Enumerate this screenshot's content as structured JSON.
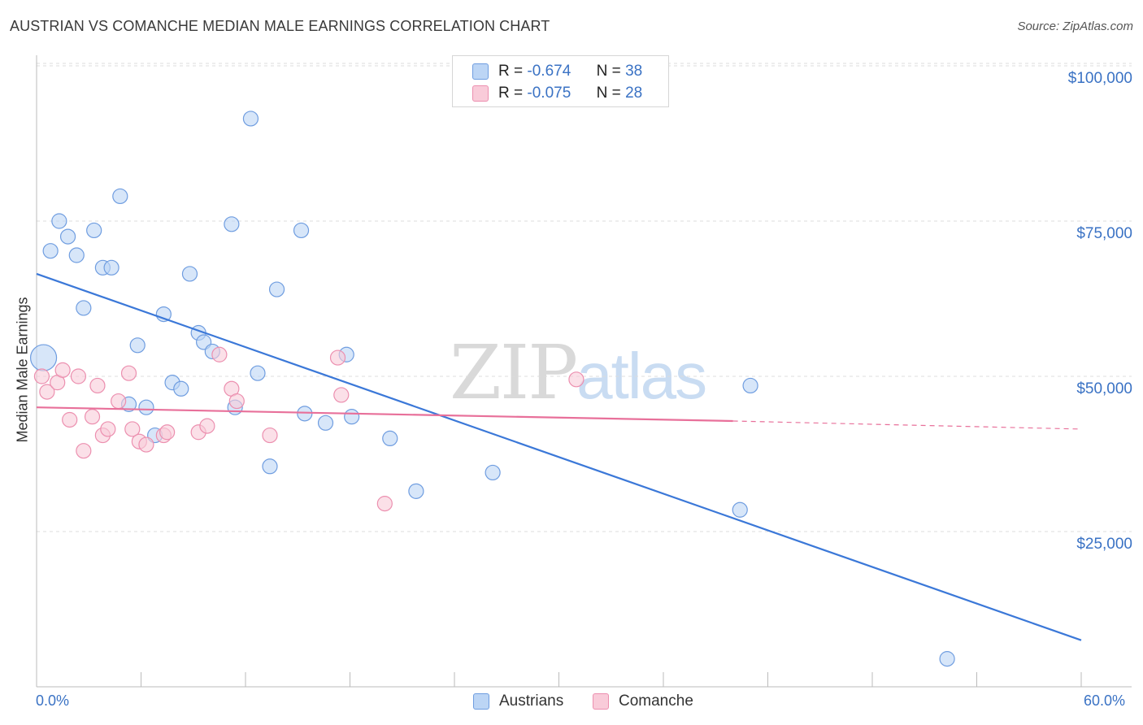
{
  "title": "AUSTRIAN VS COMANCHE MEDIAN MALE EARNINGS CORRELATION CHART",
  "source": "Source: ZipAtlas.com",
  "watermark": {
    "zip": "ZIP",
    "atlas": "atlas"
  },
  "legend_top": {
    "austrians": {
      "r_label": "R =",
      "r_value": "-0.674",
      "n_label": "N =",
      "n_value": "38"
    },
    "comanche": {
      "r_label": "R =",
      "r_value": "-0.075",
      "n_label": "N =",
      "n_value": "28"
    }
  },
  "legend_bottom": {
    "austrians": "Austrians",
    "comanche": "Comanche"
  },
  "chart_data": {
    "type": "scatter",
    "title": "AUSTRIAN VS COMANCHE MEDIAN MALE EARNINGS CORRELATION CHART",
    "xlabel": "",
    "ylabel": "Median Male Earnings",
    "xlim": [
      0,
      60
    ],
    "ylim": [
      0,
      105000
    ],
    "x_tick_labels": [
      "0.0%",
      "60.0%"
    ],
    "y_tick_labels": [
      "$25,000",
      "$50,000",
      "$75,000",
      "$100,000"
    ],
    "y_ticks": [
      25000,
      50000,
      75000,
      100000
    ],
    "colors": {
      "austrians": "#3b78d8",
      "comanche": "#e8709a",
      "austrians_fill": "#bcd5f5",
      "comanche_fill": "#f9cbd9",
      "axis_text": "#3a72c4"
    },
    "series": [
      {
        "name": "Austrians",
        "r": -0.674,
        "n": 38,
        "trend": {
          "x0": 0,
          "y0": 66500,
          "x1": 60,
          "y1": 7500
        },
        "points": [
          [
            0.4,
            53000,
            16
          ],
          [
            0.8,
            70200,
            9
          ],
          [
            1.3,
            75000,
            9
          ],
          [
            1.8,
            72500,
            9
          ],
          [
            2.3,
            69500,
            9
          ],
          [
            2.7,
            61000,
            9
          ],
          [
            3.3,
            73500,
            9
          ],
          [
            3.8,
            67500,
            9
          ],
          [
            4.3,
            67500,
            9
          ],
          [
            4.8,
            79000,
            9
          ],
          [
            5.3,
            45500,
            9
          ],
          [
            5.8,
            55000,
            9
          ],
          [
            6.3,
            45000,
            9
          ],
          [
            6.8,
            40500,
            9
          ],
          [
            7.3,
            60000,
            9
          ],
          [
            7.8,
            49000,
            9
          ],
          [
            8.3,
            48000,
            9
          ],
          [
            8.8,
            66500,
            9
          ],
          [
            9.3,
            57000,
            9
          ],
          [
            9.6,
            55500,
            9
          ],
          [
            10.1,
            54000,
            9
          ],
          [
            11.2,
            74500,
            9
          ],
          [
            11.4,
            45000,
            9
          ],
          [
            12.3,
            91500,
            9
          ],
          [
            12.7,
            50500,
            9
          ],
          [
            13.4,
            35500,
            9
          ],
          [
            13.8,
            64000,
            9
          ],
          [
            15.2,
            73500,
            9
          ],
          [
            15.4,
            44000,
            9
          ],
          [
            16.6,
            42500,
            9
          ],
          [
            17.8,
            53500,
            9
          ],
          [
            18.1,
            43500,
            9
          ],
          [
            20.3,
            40000,
            9
          ],
          [
            21.8,
            31500,
            9
          ],
          [
            26.2,
            34500,
            9
          ],
          [
            40.4,
            28500,
            9
          ],
          [
            41.0,
            48500,
            9
          ],
          [
            52.3,
            4500,
            9
          ]
        ]
      },
      {
        "name": "Comanche",
        "r": -0.075,
        "n": 28,
        "trend": {
          "x0": 0,
          "y0": 45000,
          "x1": 40,
          "y1": 42800,
          "dash_x1": 60,
          "dash_y1": 41500
        },
        "points": [
          [
            0.3,
            50000,
            9
          ],
          [
            0.6,
            47500,
            9
          ],
          [
            1.2,
            49000,
            9
          ],
          [
            1.5,
            51000,
            9
          ],
          [
            1.9,
            43000,
            9
          ],
          [
            2.4,
            50000,
            9
          ],
          [
            2.7,
            38000,
            9
          ],
          [
            3.2,
            43500,
            9
          ],
          [
            3.5,
            48500,
            9
          ],
          [
            3.8,
            40500,
            9
          ],
          [
            4.1,
            41500,
            9
          ],
          [
            4.7,
            46000,
            9
          ],
          [
            5.3,
            50500,
            9
          ],
          [
            5.5,
            41500,
            9
          ],
          [
            5.9,
            39500,
            9
          ],
          [
            6.3,
            39000,
            9
          ],
          [
            7.3,
            40500,
            9
          ],
          [
            7.5,
            41000,
            9
          ],
          [
            9.3,
            41000,
            9
          ],
          [
            9.8,
            42000,
            9
          ],
          [
            10.5,
            53500,
            9
          ],
          [
            11.2,
            48000,
            9
          ],
          [
            11.5,
            46000,
            9
          ],
          [
            13.4,
            40500,
            9
          ],
          [
            17.3,
            53000,
            9
          ],
          [
            17.5,
            47000,
            9
          ],
          [
            20.0,
            29500,
            9
          ],
          [
            31.0,
            49500,
            9
          ]
        ]
      }
    ]
  }
}
